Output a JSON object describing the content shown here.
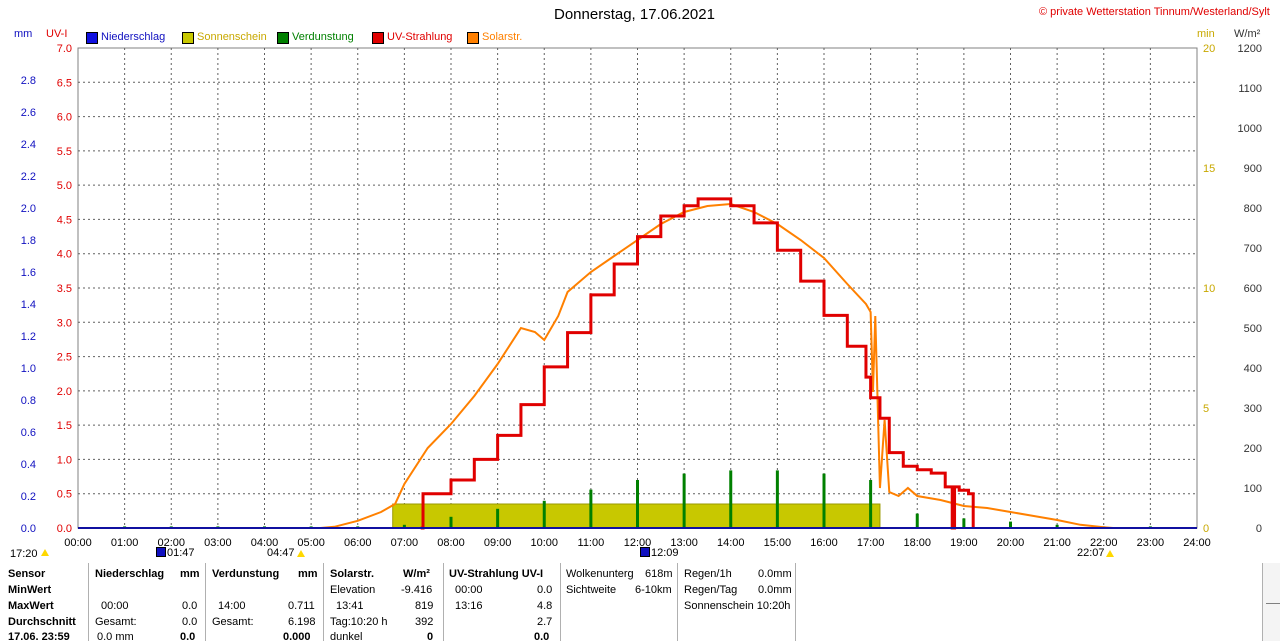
{
  "header": {
    "title": "Donnerstag, 17.06.2021",
    "copyright": "© private Wetterstation Tinnum/Westerland/Sylt"
  },
  "axis_units": {
    "mm": "mm",
    "uvi": "UV-I",
    "min": "min",
    "wm2": "W/m²"
  },
  "legend": [
    {
      "label": "Niederschlag",
      "color": "#1010e0"
    },
    {
      "label": "Sonnenschein",
      "color": "#c8c800"
    },
    {
      "label": "Verdunstung",
      "color": "#008000"
    },
    {
      "label": "UV-Strahlung",
      "color": "#e00000"
    },
    {
      "label": "Solarstr.",
      "color": "#ff8000"
    }
  ],
  "markers": {
    "left_time": "17:20",
    "moon_rise": "01:47",
    "sunrise": "04:47",
    "moon_set": "12:09",
    "sunset": "22:07"
  },
  "chart_data": {
    "type": "line",
    "title": "Donnerstag, 17.06.2021",
    "x_ticks": [
      "00:00",
      "01:00",
      "02:00",
      "03:00",
      "04:00",
      "05:00",
      "06:00",
      "07:00",
      "08:00",
      "09:00",
      "10:00",
      "11:00",
      "12:00",
      "13:00",
      "14:00",
      "15:00",
      "16:00",
      "17:00",
      "18:00",
      "19:00",
      "20:00",
      "21:00",
      "22:00",
      "23:00",
      "24:00"
    ],
    "axes": {
      "mm": {
        "min": 0,
        "max": 3.0,
        "ticks": [
          "0.0",
          "0.2",
          "0.4",
          "0.6",
          "0.8",
          "1.0",
          "1.2",
          "1.4",
          "1.6",
          "1.8",
          "2.0",
          "2.2",
          "2.4",
          "2.6",
          "2.8"
        ]
      },
      "uvi": {
        "min": 0,
        "max": 7.0,
        "ticks": [
          "0.0",
          "0.5",
          "1.0",
          "1.5",
          "2.0",
          "2.5",
          "3.0",
          "3.5",
          "4.0",
          "4.5",
          "5.0",
          "5.5",
          "6.0",
          "6.5",
          "7.0"
        ]
      },
      "min": {
        "min": 0,
        "max": 20,
        "ticks": [
          "0",
          "5",
          "10",
          "15",
          "20"
        ]
      },
      "wm2": {
        "min": 0,
        "max": 1200,
        "ticks": [
          "0",
          "100",
          "200",
          "300",
          "400",
          "500",
          "600",
          "700",
          "800",
          "900",
          "1000",
          "1100",
          "1200"
        ]
      }
    },
    "grid": true,
    "series": [
      {
        "name": "Solarstr.",
        "color": "#ff8000",
        "axis": "wm2",
        "points": [
          [
            5.2,
            0
          ],
          [
            5.5,
            3
          ],
          [
            6.0,
            18
          ],
          [
            6.5,
            40
          ],
          [
            6.8,
            60
          ],
          [
            7.0,
            110
          ],
          [
            7.5,
            200
          ],
          [
            8.0,
            260
          ],
          [
            8.5,
            330
          ],
          [
            9.0,
            410
          ],
          [
            9.5,
            500
          ],
          [
            9.8,
            490
          ],
          [
            10.0,
            470
          ],
          [
            10.3,
            530
          ],
          [
            10.5,
            590
          ],
          [
            11.0,
            640
          ],
          [
            11.5,
            680
          ],
          [
            12.0,
            720
          ],
          [
            12.5,
            760
          ],
          [
            13.0,
            790
          ],
          [
            13.5,
            805
          ],
          [
            14.0,
            810
          ],
          [
            14.5,
            790
          ],
          [
            15.0,
            760
          ],
          [
            15.5,
            720
          ],
          [
            16.0,
            675
          ],
          [
            16.5,
            610
          ],
          [
            16.9,
            560
          ],
          [
            17.0,
            540
          ],
          [
            17.05,
            340
          ],
          [
            17.1,
            530
          ],
          [
            17.2,
            100
          ],
          [
            17.3,
            270
          ],
          [
            17.4,
            90
          ],
          [
            17.6,
            80
          ],
          [
            17.8,
            100
          ],
          [
            18.0,
            80
          ],
          [
            18.5,
            70
          ],
          [
            19.0,
            55
          ],
          [
            19.5,
            50
          ],
          [
            20.0,
            40
          ],
          [
            20.5,
            30
          ],
          [
            21.0,
            20
          ],
          [
            21.5,
            8
          ],
          [
            22.0,
            2
          ],
          [
            22.2,
            0
          ]
        ]
      },
      {
        "name": "UV-Strahlung",
        "color": "#e00000",
        "axis": "uvi",
        "points": [
          [
            7.35,
            0
          ],
          [
            7.4,
            0.5
          ],
          [
            8.0,
            0.7
          ],
          [
            8.5,
            1.0
          ],
          [
            9.0,
            1.35
          ],
          [
            9.5,
            1.8
          ],
          [
            10.0,
            2.35
          ],
          [
            10.5,
            2.85
          ],
          [
            11.0,
            3.4
          ],
          [
            11.5,
            3.85
          ],
          [
            12.0,
            4.25
          ],
          [
            12.5,
            4.55
          ],
          [
            13.0,
            4.7
          ],
          [
            13.3,
            4.8
          ],
          [
            13.9,
            4.8
          ],
          [
            14.0,
            4.7
          ],
          [
            14.5,
            4.45
          ],
          [
            15.0,
            4.05
          ],
          [
            15.5,
            3.6
          ],
          [
            16.0,
            3.1
          ],
          [
            16.5,
            2.65
          ],
          [
            16.9,
            2.2
          ],
          [
            17.0,
            1.9
          ],
          [
            17.2,
            1.6
          ],
          [
            17.4,
            1.1
          ],
          [
            17.7,
            0.9
          ],
          [
            18.0,
            0.85
          ],
          [
            18.3,
            0.8
          ],
          [
            18.6,
            0.6
          ],
          [
            18.7,
            0.6
          ],
          [
            18.75,
            0.0
          ],
          [
            18.8,
            0.6
          ],
          [
            18.9,
            0.55
          ],
          [
            19.1,
            0.5
          ],
          [
            19.2,
            0.0
          ]
        ]
      },
      {
        "name": "Sonnenschein",
        "color": "#c8c800",
        "axis": "min",
        "bars": [
          [
            6.75,
            17.2,
            1.0
          ]
        ]
      },
      {
        "name": "Verdunstung",
        "color": "#008000",
        "axis": "mm",
        "bars": [
          [
            1.0,
            0.01
          ],
          [
            2.0,
            0.01
          ],
          [
            3.0,
            0.01
          ],
          [
            4.0,
            0.01
          ],
          [
            5.0,
            0.01
          ],
          [
            6.0,
            0.01
          ],
          [
            7.0,
            0.02
          ],
          [
            8.0,
            0.07
          ],
          [
            9.0,
            0.12
          ],
          [
            10.0,
            0.17
          ],
          [
            11.0,
            0.24
          ],
          [
            12.0,
            0.3
          ],
          [
            13.0,
            0.34
          ],
          [
            14.0,
            0.36
          ],
          [
            15.0,
            0.36
          ],
          [
            16.0,
            0.34
          ],
          [
            17.0,
            0.3
          ],
          [
            18.0,
            0.09
          ],
          [
            19.0,
            0.06
          ],
          [
            20.0,
            0.04
          ],
          [
            21.0,
            0.02
          ],
          [
            22.0,
            0.01
          ],
          [
            23.0,
            0.01
          ]
        ]
      }
    ]
  },
  "stats": {
    "labels": {
      "sensor": "Sensor",
      "min": "MinWert",
      "max": "MaxWert",
      "avg": "Durchschnitt",
      "ts": "17.06. 23:59"
    },
    "niederschlag": {
      "title": "Niederschlag",
      "unit": "mm",
      "max_time": "00:00",
      "max_val": "0.0",
      "gesamt_label": "Gesamt:",
      "gesamt_val": "0.0",
      "last_left": "0.0 mm",
      "last_right": "0.0"
    },
    "verdunstung": {
      "title": "Verdunstung",
      "unit": "mm",
      "max_time": "14:00",
      "max_val": "0.711",
      "gesamt_label": "Gesamt:",
      "gesamt_val": "6.198",
      "last_right": "0.000"
    },
    "solar": {
      "title": "Solarstr.",
      "unit": "W/m²",
      "elev_label": "Elevation",
      "elev_val": "-9.416",
      "max_time": "13:41",
      "max_val": "819",
      "tag_label": "Tag:10:20 h",
      "tag_val": "392",
      "dunkel_label": "dunkel",
      "dunkel_val": "0"
    },
    "uv": {
      "title": "UV-Strahlung UV-I",
      "min_time": "00:00",
      "min_val": "0.0",
      "max_time": "13:16",
      "max_val": "4.8",
      "avg_val": "2.7",
      "last_val": "0.0"
    },
    "wolken": {
      "w_label": "Wolkenunterg",
      "w_val": "618m",
      "s_label": "Sichtweite",
      "s_val": "6-10km"
    },
    "regen": {
      "r1_label": "Regen/1h",
      "r1_val": "0.0mm",
      "rt_label": "Regen/Tag",
      "rt_val": "0.0mm",
      "sonne": "Sonnenschein 10:20h"
    }
  }
}
